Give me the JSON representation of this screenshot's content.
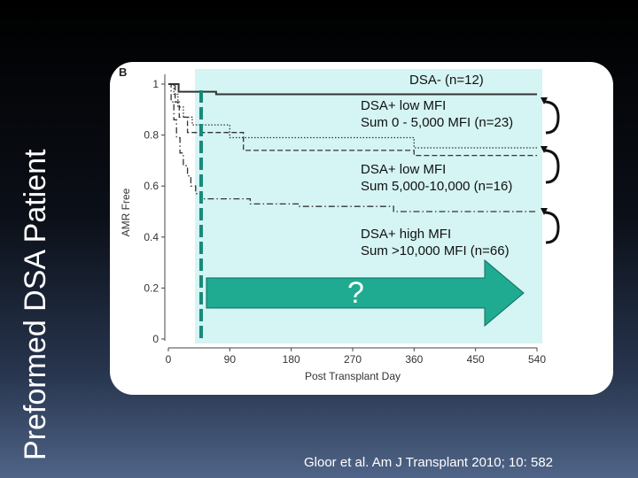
{
  "slide": {
    "title": "Preformed DSA Patient",
    "citation": "Gloor et al. Am J Transplant 2010; 10: 582"
  },
  "colors": {
    "panel_highlight": "#d5f4f4",
    "marker_line": "#178a7a",
    "arrow_fill": "#1fab92",
    "series_line": "#333333"
  },
  "chart_data": {
    "type": "line",
    "panel_label": "B",
    "xlabel": "Post Transplant Day",
    "ylabel": "AMR Free",
    "xlim": [
      0,
      540
    ],
    "ylim": [
      0,
      1
    ],
    "xticks": [
      0,
      90,
      180,
      270,
      360,
      450,
      540
    ],
    "xtick_labels": [
      "0",
      "90",
      "180",
      "270",
      "360",
      "450",
      "540"
    ],
    "yticks": [
      0,
      0.2,
      0.4,
      0.6,
      0.8,
      1
    ],
    "ytick_labels": [
      "0",
      "0.2",
      "0.4",
      "0.6",
      "0.8",
      "1"
    ],
    "grid": false,
    "marker_day": 48,
    "arrow_label": "?",
    "series": [
      {
        "label_lines": [
          "DSA- (n=12)"
        ],
        "dash": "solid",
        "points": [
          [
            0,
            1.0
          ],
          [
            15,
            1.0
          ],
          [
            15,
            0.97
          ],
          [
            70,
            0.97
          ],
          [
            70,
            0.96
          ],
          [
            540,
            0.96
          ]
        ]
      },
      {
        "label_lines": [
          "DSA+ low MFI",
          "Sum 0 - 5,000 MFI (n=23)"
        ],
        "dash": "dotted",
        "points": [
          [
            0,
            1.0
          ],
          [
            8,
            1.0
          ],
          [
            8,
            0.96
          ],
          [
            14,
            0.96
          ],
          [
            14,
            0.91
          ],
          [
            22,
            0.91
          ],
          [
            22,
            0.87
          ],
          [
            35,
            0.87
          ],
          [
            35,
            0.84
          ],
          [
            90,
            0.84
          ],
          [
            90,
            0.79
          ],
          [
            360,
            0.79
          ],
          [
            360,
            0.75
          ],
          [
            540,
            0.75
          ]
        ]
      },
      {
        "label_lines": [
          "DSA+ low MFI",
          "Sum 5,000-10,000 (n=16)"
        ],
        "dash": "dashed",
        "points": [
          [
            0,
            1.0
          ],
          [
            10,
            1.0
          ],
          [
            10,
            0.93
          ],
          [
            16,
            0.93
          ],
          [
            16,
            0.87
          ],
          [
            28,
            0.87
          ],
          [
            28,
            0.81
          ],
          [
            110,
            0.81
          ],
          [
            110,
            0.74
          ],
          [
            360,
            0.74
          ],
          [
            360,
            0.72
          ],
          [
            540,
            0.72
          ]
        ]
      },
      {
        "label_lines": [
          "DSA+ high MFI",
          "Sum >10,000 MFI (n=66)"
        ],
        "dash": "dashdot",
        "points": [
          [
            0,
            1.0
          ],
          [
            4,
            1.0
          ],
          [
            4,
            0.93
          ],
          [
            8,
            0.93
          ],
          [
            8,
            0.86
          ],
          [
            12,
            0.86
          ],
          [
            12,
            0.79
          ],
          [
            17,
            0.79
          ],
          [
            17,
            0.73
          ],
          [
            22,
            0.73
          ],
          [
            22,
            0.68
          ],
          [
            28,
            0.68
          ],
          [
            28,
            0.64
          ],
          [
            33,
            0.64
          ],
          [
            33,
            0.6
          ],
          [
            40,
            0.6
          ],
          [
            40,
            0.57
          ],
          [
            48,
            0.57
          ],
          [
            48,
            0.55
          ],
          [
            120,
            0.55
          ],
          [
            120,
            0.53
          ],
          [
            190,
            0.53
          ],
          [
            190,
            0.52
          ],
          [
            330,
            0.52
          ],
          [
            330,
            0.5
          ],
          [
            540,
            0.5
          ]
        ]
      }
    ]
  }
}
